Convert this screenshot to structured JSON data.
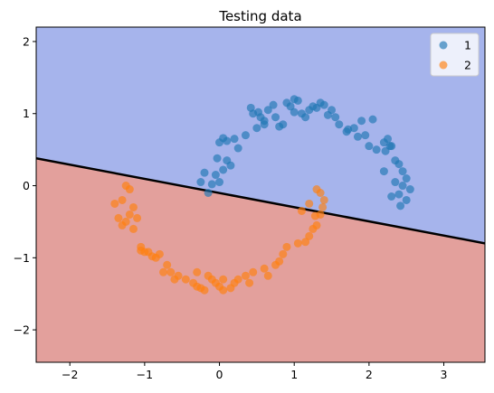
{
  "chart_data": {
    "type": "scatter",
    "title": "Testing data",
    "xlabel": "",
    "ylabel": "",
    "xlim": [
      -2.45,
      3.55
    ],
    "ylim": [
      -2.45,
      2.2
    ],
    "x_ticks": [
      -2,
      -1,
      0,
      1,
      2,
      3
    ],
    "y_ticks": [
      -2,
      -1,
      0,
      1,
      2
    ],
    "x_tick_labels": [
      "−2",
      "−1",
      "0",
      "1",
      "2",
      "3"
    ],
    "y_tick_labels": [
      "−2",
      "−1",
      "0",
      "1",
      "2"
    ],
    "grid": false,
    "legend_position": "top-right",
    "decision_boundary": {
      "line": [
        [
          -2.45,
          0.38
        ],
        [
          3.55,
          -0.8
        ]
      ],
      "region_above_color": "#a6b4ec",
      "region_below_color": "#e3a09c",
      "line_color": "#000000"
    },
    "series": [
      {
        "name": "1",
        "color": "#1f77b4",
        "points": [
          [
            -0.25,
            0.05
          ],
          [
            -0.15,
            -0.1
          ],
          [
            -0.1,
            0.02
          ],
          [
            -0.05,
            0.15
          ],
          [
            0.0,
            0.05
          ],
          [
            0.05,
            0.22
          ],
          [
            -0.2,
            0.18
          ],
          [
            0.1,
            0.35
          ],
          [
            -0.03,
            0.38
          ],
          [
            0.15,
            0.28
          ],
          [
            0.0,
            0.6
          ],
          [
            0.05,
            0.66
          ],
          [
            0.1,
            0.62
          ],
          [
            0.2,
            0.65
          ],
          [
            0.35,
            0.7
          ],
          [
            0.25,
            0.52
          ],
          [
            0.5,
            0.8
          ],
          [
            0.6,
            0.9
          ],
          [
            0.55,
            0.95
          ],
          [
            0.65,
            1.05
          ],
          [
            0.45,
            1.0
          ],
          [
            0.42,
            1.08
          ],
          [
            0.52,
            1.02
          ],
          [
            0.72,
            1.12
          ],
          [
            0.8,
            0.82
          ],
          [
            0.6,
            0.85
          ],
          [
            0.9,
            1.15
          ],
          [
            0.95,
            1.1
          ],
          [
            1.0,
            1.2
          ],
          [
            1.05,
            1.18
          ],
          [
            1.0,
            1.02
          ],
          [
            1.15,
            0.95
          ],
          [
            1.2,
            1.05
          ],
          [
            1.3,
            1.08
          ],
          [
            1.35,
            1.15
          ],
          [
            1.4,
            1.12
          ],
          [
            1.25,
            1.1
          ],
          [
            1.45,
            0.98
          ],
          [
            1.55,
            0.95
          ],
          [
            1.6,
            0.85
          ],
          [
            1.72,
            0.78
          ],
          [
            1.8,
            0.8
          ],
          [
            1.9,
            0.9
          ],
          [
            2.05,
            0.92
          ],
          [
            1.85,
            0.68
          ],
          [
            2.0,
            0.55
          ],
          [
            2.1,
            0.5
          ],
          [
            2.2,
            0.6
          ],
          [
            2.25,
            0.65
          ],
          [
            2.3,
            0.55
          ],
          [
            2.35,
            0.35
          ],
          [
            2.4,
            0.3
          ],
          [
            2.45,
            0.2
          ],
          [
            2.5,
            0.1
          ],
          [
            2.45,
            0.0
          ],
          [
            2.55,
            -0.05
          ],
          [
            2.4,
            -0.12
          ],
          [
            2.5,
            -0.2
          ],
          [
            2.42,
            -0.28
          ],
          [
            2.35,
            0.05
          ],
          [
            2.28,
            0.55
          ],
          [
            2.22,
            0.48
          ],
          [
            1.95,
            0.7
          ],
          [
            1.7,
            0.75
          ],
          [
            1.5,
            1.05
          ],
          [
            0.75,
            0.95
          ],
          [
            0.85,
            0.85
          ],
          [
            1.1,
            1.0
          ],
          [
            2.3,
            -0.15
          ],
          [
            2.2,
            0.2
          ]
        ]
      },
      {
        "name": "2",
        "color": "#ff7f0e",
        "points": [
          [
            -1.25,
            0.0
          ],
          [
            -1.2,
            -0.05
          ],
          [
            -1.3,
            -0.2
          ],
          [
            -1.4,
            -0.25
          ],
          [
            -1.15,
            -0.3
          ],
          [
            -1.2,
            -0.4
          ],
          [
            -1.25,
            -0.5
          ],
          [
            -1.1,
            -0.45
          ],
          [
            -1.3,
            -0.55
          ],
          [
            -1.15,
            -0.6
          ],
          [
            -1.05,
            -0.9
          ],
          [
            -1.0,
            -0.92
          ],
          [
            -0.9,
            -0.98
          ],
          [
            -1.05,
            -0.85
          ],
          [
            -0.85,
            -1.0
          ],
          [
            -0.8,
            -0.95
          ],
          [
            -0.7,
            -1.1
          ],
          [
            -0.65,
            -1.2
          ],
          [
            -0.75,
            -1.2
          ],
          [
            -0.6,
            -1.3
          ],
          [
            -0.45,
            -1.3
          ],
          [
            -0.35,
            -1.35
          ],
          [
            -0.3,
            -1.4
          ],
          [
            -0.25,
            -1.42
          ],
          [
            -0.2,
            -1.45
          ],
          [
            -0.1,
            -1.3
          ],
          [
            -0.05,
            -1.35
          ],
          [
            0.0,
            -1.4
          ],
          [
            0.05,
            -1.45
          ],
          [
            0.15,
            -1.42
          ],
          [
            0.2,
            -1.35
          ],
          [
            0.25,
            -1.3
          ],
          [
            0.35,
            -1.25
          ],
          [
            0.45,
            -1.2
          ],
          [
            0.6,
            -1.15
          ],
          [
            0.65,
            -1.25
          ],
          [
            0.75,
            -1.1
          ],
          [
            0.8,
            -1.05
          ],
          [
            0.85,
            -0.95
          ],
          [
            0.9,
            -0.85
          ],
          [
            1.05,
            -0.8
          ],
          [
            1.15,
            -0.78
          ],
          [
            1.2,
            -0.7
          ],
          [
            1.25,
            -0.6
          ],
          [
            1.3,
            -0.55
          ],
          [
            1.35,
            -0.4
          ],
          [
            1.38,
            -0.3
          ],
          [
            1.4,
            -0.2
          ],
          [
            1.35,
            -0.1
          ],
          [
            1.3,
            -0.05
          ],
          [
            1.2,
            -0.25
          ],
          [
            1.1,
            -0.35
          ],
          [
            -0.3,
            -1.2
          ],
          [
            -0.15,
            -1.25
          ],
          [
            0.4,
            -1.35
          ],
          [
            -0.55,
            -1.25
          ],
          [
            -1.35,
            -0.45
          ],
          [
            -0.95,
            -0.92
          ],
          [
            1.28,
            -0.42
          ],
          [
            0.05,
            -1.3
          ]
        ]
      }
    ]
  }
}
